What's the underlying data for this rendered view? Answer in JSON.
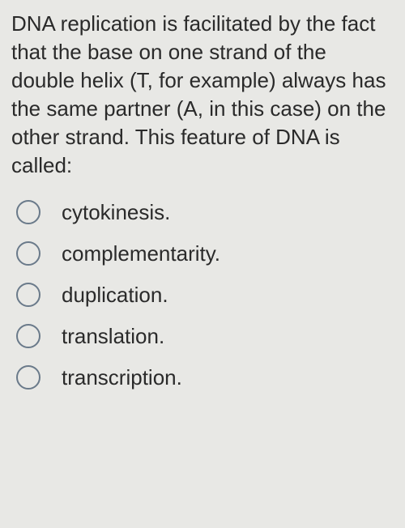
{
  "question": {
    "text": "DNA replication is facilitated by the fact that the base on one strand of the double helix (T, for example) always has the same partner (A, in this case) on the other strand. This feature of DNA is called:"
  },
  "options": [
    {
      "label": "cytokinesis."
    },
    {
      "label": "complementarity."
    },
    {
      "label": "duplication."
    },
    {
      "label": "translation."
    },
    {
      "label": "transcription."
    }
  ],
  "colors": {
    "background": "#e8e8e5",
    "text": "#2a2a2a",
    "radio_border": "#6a7a8a"
  }
}
